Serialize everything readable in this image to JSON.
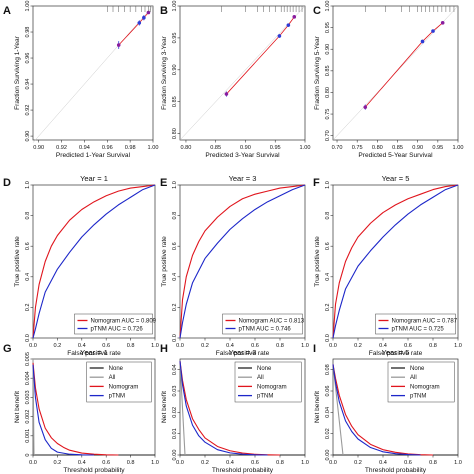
{
  "chart_data": [
    {
      "panel": "A",
      "type": "scatter",
      "xlabel": "Predicted  1-Year Survival",
      "ylabel": "Fraction Surviving 1-Year",
      "xlim": [
        0.895,
        1.0
      ],
      "ylim": [
        0.897,
        1.0
      ],
      "xticks": [
        "0.90",
        "0.92",
        "0.94",
        "0.96",
        "0.98",
        "1.00"
      ],
      "yticks": [
        "0.90",
        "0.92",
        "0.94",
        "0.96",
        "0.98",
        "1.00"
      ],
      "points": [
        {
          "x": 0.97,
          "y": 0.97,
          "err": 0.003,
          "color": "#8a1d9e"
        },
        {
          "x": 0.988,
          "y": 0.987,
          "err": 0.002,
          "color": "#2e3bd6"
        },
        {
          "x": 0.992,
          "y": 0.991,
          "err": 0.002,
          "color": "#2e3bd6"
        },
        {
          "x": 0.996,
          "y": 0.995,
          "err": 0.001,
          "color": "#8a1d9e"
        }
      ],
      "reference_line": "diagonal",
      "rug": [
        0.96,
        0.965,
        0.97,
        0.975,
        0.98,
        0.985,
        0.99,
        0.993,
        0.996,
        0.998
      ]
    },
    {
      "panel": "B",
      "type": "scatter",
      "xlabel": "Predicted  3-Year Survival",
      "ylabel": "Fraction Surviving 3-Year",
      "xlim": [
        0.79,
        1.0
      ],
      "ylim": [
        0.79,
        1.0
      ],
      "xticks": [
        "0.80",
        "0.85",
        "0.90",
        "0.95",
        "1.00"
      ],
      "yticks": [
        "0.80",
        "0.85",
        "0.90",
        "0.95",
        "1.00"
      ],
      "points": [
        {
          "x": 0.868,
          "y": 0.862,
          "err": 0.004,
          "color": "#8a1d9e"
        },
        {
          "x": 0.957,
          "y": 0.953,
          "err": 0.003,
          "color": "#2e3bd6"
        },
        {
          "x": 0.972,
          "y": 0.97,
          "err": 0.002,
          "color": "#2e3bd6"
        },
        {
          "x": 0.982,
          "y": 0.983,
          "err": 0.002,
          "color": "#8a1d9e"
        }
      ],
      "reference_line": "diagonal",
      "rug": [
        0.86,
        0.9,
        0.92,
        0.93,
        0.94,
        0.95,
        0.96,
        0.965,
        0.97,
        0.975,
        0.98,
        0.985,
        0.99,
        0.995
      ]
    },
    {
      "panel": "C",
      "type": "scatter",
      "xlabel": "Predicted  5-Year Survival",
      "ylabel": "Fraction Surviving 5-Year",
      "xlim": [
        0.69,
        1.0
      ],
      "ylim": [
        0.69,
        1.0
      ],
      "xticks": [
        "0.70",
        "0.75",
        "0.80",
        "0.85",
        "0.90",
        "0.95",
        "1.00"
      ],
      "yticks": [
        "0.70",
        "0.75",
        "0.80",
        "0.85",
        "0.90",
        "0.95",
        "1.00"
      ],
      "points": [
        {
          "x": 0.77,
          "y": 0.766,
          "err": 0.006,
          "color": "#8a1d9e"
        },
        {
          "x": 0.912,
          "y": 0.918,
          "err": 0.004,
          "color": "#2e3bd6"
        },
        {
          "x": 0.938,
          "y": 0.942,
          "err": 0.003,
          "color": "#2e3bd6"
        },
        {
          "x": 0.962,
          "y": 0.961,
          "err": 0.003,
          "color": "#8a1d9e"
        }
      ],
      "reference_line": "diagonal",
      "rug": [
        0.77,
        0.82,
        0.86,
        0.88,
        0.9,
        0.91,
        0.92,
        0.93,
        0.94,
        0.95,
        0.96,
        0.97,
        0.98,
        0.99
      ]
    },
    {
      "panel": "D",
      "type": "line",
      "title": "Year = 1",
      "xlabel": "False positive rate",
      "ylabel": "True positive rate",
      "xlim": [
        0,
        1
      ],
      "ylim": [
        0,
        1
      ],
      "xticks": [
        "0.0",
        "0.2",
        "0.4",
        "0.6",
        "0.8",
        "1.0"
      ],
      "yticks": [
        "0.0",
        "0.2",
        "0.4",
        "0.6",
        "0.8",
        "1.0"
      ],
      "series": [
        {
          "name": "Nomogram AUC = 0.809",
          "color": "#e0151d",
          "x": [
            0,
            0.02,
            0.05,
            0.1,
            0.15,
            0.2,
            0.3,
            0.4,
            0.5,
            0.6,
            0.7,
            0.8,
            0.9,
            1.0
          ],
          "y": [
            0,
            0.2,
            0.35,
            0.5,
            0.6,
            0.67,
            0.77,
            0.84,
            0.89,
            0.93,
            0.96,
            0.98,
            0.99,
            1.0
          ]
        },
        {
          "name": "pTNM AUC = 0.726",
          "color": "#1d27c9",
          "x": [
            0,
            0.02,
            0.05,
            0.1,
            0.2,
            0.3,
            0.4,
            0.5,
            0.6,
            0.7,
            0.8,
            0.9,
            1.0
          ],
          "y": [
            0,
            0.06,
            0.16,
            0.3,
            0.45,
            0.56,
            0.66,
            0.74,
            0.81,
            0.87,
            0.92,
            0.97,
            1.0
          ]
        }
      ],
      "legend": "bottom-right"
    },
    {
      "panel": "E",
      "type": "line",
      "title": "Year = 3",
      "xlabel": "False positive rate",
      "ylabel": "True positive rate",
      "xlim": [
        0,
        1
      ],
      "ylim": [
        0,
        1
      ],
      "xticks": [
        "0.0",
        "0.2",
        "0.4",
        "0.6",
        "0.8",
        "1.0"
      ],
      "yticks": [
        "0.0",
        "0.2",
        "0.4",
        "0.6",
        "0.8",
        "1.0"
      ],
      "series": [
        {
          "name": "Nomogram AUC = 0.813",
          "color": "#e0151d",
          "x": [
            0,
            0.02,
            0.05,
            0.1,
            0.15,
            0.2,
            0.3,
            0.4,
            0.5,
            0.6,
            0.7,
            0.8,
            0.9,
            1.0
          ],
          "y": [
            0,
            0.25,
            0.4,
            0.54,
            0.63,
            0.7,
            0.79,
            0.86,
            0.91,
            0.94,
            0.96,
            0.98,
            0.99,
            1.0
          ]
        },
        {
          "name": "pTNM AUC = 0.746",
          "color": "#1d27c9",
          "x": [
            0,
            0.02,
            0.05,
            0.1,
            0.2,
            0.3,
            0.4,
            0.5,
            0.6,
            0.7,
            0.8,
            0.9,
            1.0
          ],
          "y": [
            0,
            0.1,
            0.22,
            0.36,
            0.52,
            0.62,
            0.71,
            0.78,
            0.84,
            0.89,
            0.93,
            0.97,
            1.0
          ]
        }
      ],
      "legend": "bottom-right"
    },
    {
      "panel": "F",
      "type": "line",
      "title": "Year = 5",
      "xlabel": "False positive rate",
      "ylabel": "True positive rate",
      "xlim": [
        0,
        1
      ],
      "ylim": [
        0,
        1
      ],
      "xticks": [
        "0.0",
        "0.2",
        "0.4",
        "0.6",
        "0.8",
        "1.0"
      ],
      "yticks": [
        "0.0",
        "0.2",
        "0.4",
        "0.6",
        "0.8",
        "1.0"
      ],
      "series": [
        {
          "name": "Nomogram AUC = 0.787",
          "color": "#e0151d",
          "x": [
            0,
            0.02,
            0.05,
            0.1,
            0.15,
            0.2,
            0.3,
            0.4,
            0.5,
            0.6,
            0.7,
            0.8,
            0.9,
            1.0
          ],
          "y": [
            0,
            0.22,
            0.36,
            0.5,
            0.59,
            0.66,
            0.75,
            0.82,
            0.87,
            0.91,
            0.94,
            0.97,
            0.99,
            1.0
          ]
        },
        {
          "name": "pTNM AUC = 0.725",
          "color": "#1d27c9",
          "x": [
            0,
            0.02,
            0.05,
            0.1,
            0.2,
            0.3,
            0.4,
            0.5,
            0.6,
            0.7,
            0.8,
            0.9,
            1.0
          ],
          "y": [
            0,
            0.08,
            0.18,
            0.32,
            0.47,
            0.57,
            0.66,
            0.74,
            0.81,
            0.87,
            0.92,
            0.97,
            1.0
          ]
        }
      ],
      "legend": "bottom-right"
    },
    {
      "panel": "G",
      "type": "line",
      "title": "Year = 1",
      "xlabel": "Threshold probability",
      "ylabel": "Net benefit",
      "xlim": [
        0,
        1
      ],
      "ylim": [
        0,
        0.005
      ],
      "xticks": [
        "0.0",
        "0.2",
        "0.4",
        "0.6",
        "0.8",
        "1.0"
      ],
      "yticks": [
        "0",
        "0.001",
        "0.002",
        "0.003",
        "0.004",
        "0.005"
      ],
      "series": [
        {
          "name": "None",
          "color": "#222222",
          "x": [
            0,
            1
          ],
          "y": [
            0,
            0
          ]
        },
        {
          "name": "All",
          "color": "#9a9a9a",
          "x": [
            0,
            0.004,
            0.008
          ],
          "y": [
            0.005,
            0.0025,
            0
          ]
        },
        {
          "name": "Nomogram",
          "color": "#e0151d",
          "x": [
            0,
            0.02,
            0.05,
            0.1,
            0.15,
            0.2,
            0.25,
            0.3,
            0.4,
            0.5,
            0.6,
            0.7
          ],
          "y": [
            0.0048,
            0.0035,
            0.0024,
            0.0014,
            0.0009,
            0.0006,
            0.0004,
            0.00025,
            0.0001,
            4e-05,
            1e-05,
            0
          ]
        },
        {
          "name": "pTNM",
          "color": "#1d27c9",
          "x": [
            0,
            0.02,
            0.05,
            0.1,
            0.15,
            0.2,
            0.3,
            0.4,
            0.5
          ],
          "y": [
            0.0047,
            0.003,
            0.0017,
            0.0008,
            0.00035,
            0.00015,
            4e-05,
            1e-05,
            0
          ]
        }
      ],
      "legend": "top-right"
    },
    {
      "panel": "H",
      "type": "line",
      "title": "Year = 3",
      "xlabel": "Threshold probability",
      "ylabel": "Net benefit",
      "xlim": [
        0,
        1
      ],
      "ylim": [
        0,
        0.045
      ],
      "xticks": [
        "0.0",
        "0.2",
        "0.4",
        "0.6",
        "0.8",
        "1.0"
      ],
      "yticks": [
        "0.00",
        "0.01",
        "0.02",
        "0.03",
        "0.04"
      ],
      "series": [
        {
          "name": "None",
          "color": "#222222",
          "x": [
            0,
            1
          ],
          "y": [
            0,
            0
          ]
        },
        {
          "name": "All",
          "color": "#9a9a9a",
          "x": [
            0,
            0.02,
            0.04
          ],
          "y": [
            0.044,
            0.022,
            0
          ]
        },
        {
          "name": "Nomogram",
          "color": "#e0151d",
          "x": [
            0,
            0.02,
            0.05,
            0.1,
            0.15,
            0.2,
            0.3,
            0.4,
            0.5,
            0.6,
            0.7,
            0.8
          ],
          "y": [
            0.044,
            0.035,
            0.026,
            0.017,
            0.012,
            0.008,
            0.004,
            0.002,
            0.0009,
            0.0003,
            0.0001,
            0
          ]
        },
        {
          "name": "pTNM",
          "color": "#1d27c9",
          "x": [
            0,
            0.02,
            0.05,
            0.1,
            0.15,
            0.2,
            0.3,
            0.4,
            0.5,
            0.6,
            0.7
          ],
          "y": [
            0.044,
            0.033,
            0.023,
            0.014,
            0.009,
            0.006,
            0.0025,
            0.001,
            0.0004,
            0.0001,
            0
          ]
        }
      ],
      "legend": "top-right"
    },
    {
      "panel": "I",
      "type": "line",
      "title": "Year = 5",
      "xlabel": "Threshold probability",
      "ylabel": "Net benefit",
      "xlim": [
        0,
        1
      ],
      "ylim": [
        0,
        0.09
      ],
      "xticks": [
        "0.0",
        "0.2",
        "0.4",
        "0.6",
        "0.8",
        "1.0"
      ],
      "yticks": [
        "0.00",
        "0.02",
        "0.04",
        "0.06",
        "0.08"
      ],
      "series": [
        {
          "name": "None",
          "color": "#222222",
          "x": [
            0,
            1
          ],
          "y": [
            0,
            0
          ]
        },
        {
          "name": "All",
          "color": "#9a9a9a",
          "x": [
            0,
            0.04,
            0.08
          ],
          "y": [
            0.085,
            0.043,
            0
          ]
        },
        {
          "name": "Nomogram",
          "color": "#e0151d",
          "x": [
            0,
            0.02,
            0.05,
            0.1,
            0.15,
            0.2,
            0.3,
            0.4,
            0.5,
            0.6,
            0.7,
            0.8
          ],
          "y": [
            0.085,
            0.072,
            0.056,
            0.038,
            0.027,
            0.019,
            0.01,
            0.005,
            0.0025,
            0.001,
            0.0003,
            0
          ]
        },
        {
          "name": "pTNM",
          "color": "#1d27c9",
          "x": [
            0,
            0.02,
            0.05,
            0.1,
            0.15,
            0.2,
            0.3,
            0.4,
            0.5,
            0.6,
            0.7
          ],
          "y": [
            0.085,
            0.068,
            0.05,
            0.032,
            0.022,
            0.015,
            0.007,
            0.003,
            0.0012,
            0.0004,
            0
          ]
        }
      ],
      "legend": "top-right"
    }
  ]
}
